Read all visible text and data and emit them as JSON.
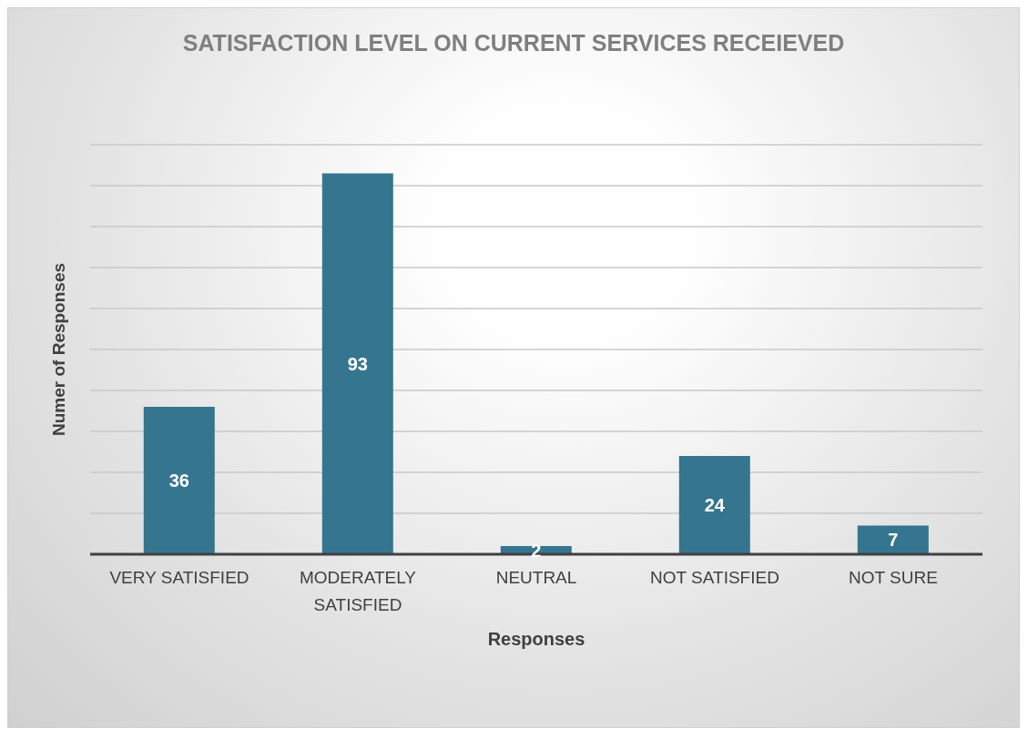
{
  "chart_data": {
    "type": "bar",
    "title": "SATISFACTION LEVEL ON CURRENT SERVICES RECEIEVED",
    "xlabel": "Responses",
    "ylabel": "Numer of Responses",
    "categories": [
      "VERY SATISFIED",
      "MODERATELY SATISFIED",
      "NEUTRAL",
      "NOT SATISFIED",
      "NOT SURE"
    ],
    "values": [
      36,
      93,
      2,
      24,
      7
    ],
    "color": "#36758f",
    "ylim": [
      0,
      100
    ],
    "yticks": [
      {
        "value": 0,
        "label": null
      },
      {
        "value": 10,
        "label": null
      },
      {
        "value": 20,
        "label": null
      },
      {
        "value": 30,
        "label": null
      },
      {
        "value": 40,
        "label": null
      },
      {
        "value": 50,
        "label": null
      },
      {
        "value": 60,
        "label": null
      },
      {
        "value": 70,
        "label": null
      },
      {
        "value": 80,
        "label": null
      },
      {
        "value": 90,
        "label": null
      },
      {
        "value": 100,
        "label": null
      }
    ],
    "grid": "y",
    "data_labels": true,
    "tick_labels": "x"
  }
}
